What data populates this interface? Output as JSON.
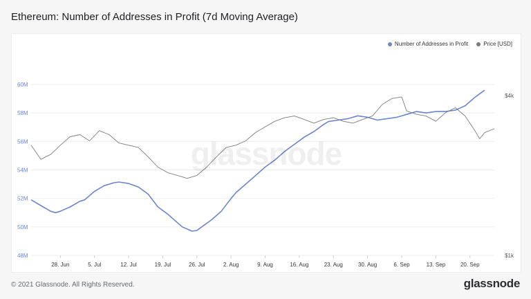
{
  "title": "Ethereum: Number of Addresses in Profit (7d Moving Average)",
  "footer": {
    "copyright": "© 2021 Glassnode. All Rights Reserved.",
    "logo": "glassnode"
  },
  "watermark": "glassnode",
  "colors": {
    "addresses": "#6c85cf",
    "price": "#7c7c7c",
    "grid": "#eeeeee",
    "tick": "#6c85cf"
  },
  "chart_data": {
    "type": "line",
    "title": "Ethereum: Number of Addresses in Profit (7d Moving Average)",
    "legend_position": "top-right",
    "grid": true,
    "x_ticks": [
      "28. Jun",
      "5. Jul",
      "12. Jul",
      "19. Jul",
      "26. Jul",
      "2. Aug",
      "9. Aug",
      "16. Aug",
      "23. Aug",
      "30. Aug",
      "6. Sep",
      "13. Sep",
      "20. Sep"
    ],
    "x_range": [
      "2021-06-22",
      "2021-09-25"
    ],
    "left_axis": {
      "ticks": [
        "48M",
        "50M",
        "52M",
        "54M",
        "56M",
        "58M",
        "60M"
      ],
      "tick_values": [
        48,
        50,
        52,
        54,
        56,
        58,
        60
      ],
      "unit": "M",
      "ylim": [
        48,
        61.8
      ]
    },
    "right_axis": {
      "ticks": [
        "$1k",
        "$4k"
      ],
      "tick_values": [
        1000,
        4000
      ],
      "scale": "log",
      "ylim": [
        1000,
        5500
      ]
    },
    "series": [
      {
        "name": "Number of Addresses in Profit",
        "axis": "left",
        "points": [
          [
            "2021-06-22",
            51.9
          ],
          [
            "2021-06-24",
            51.5
          ],
          [
            "2021-06-26",
            51.1
          ],
          [
            "2021-06-27",
            51.0
          ],
          [
            "2021-06-28",
            51.1
          ],
          [
            "2021-06-30",
            51.4
          ],
          [
            "2021-07-02",
            51.8
          ],
          [
            "2021-07-03",
            51.9
          ],
          [
            "2021-07-05",
            52.5
          ],
          [
            "2021-07-07",
            52.9
          ],
          [
            "2021-07-09",
            53.1
          ],
          [
            "2021-07-10",
            53.15
          ],
          [
            "2021-07-12",
            53.05
          ],
          [
            "2021-07-14",
            52.8
          ],
          [
            "2021-07-16",
            52.3
          ],
          [
            "2021-07-18",
            51.4
          ],
          [
            "2021-07-20",
            50.9
          ],
          [
            "2021-07-22",
            50.3
          ],
          [
            "2021-07-23",
            50.0
          ],
          [
            "2021-07-25",
            49.7
          ],
          [
            "2021-07-26",
            49.75
          ],
          [
            "2021-07-27",
            50.0
          ],
          [
            "2021-07-29",
            50.5
          ],
          [
            "2021-07-31",
            51.1
          ],
          [
            "2021-08-02",
            52.0
          ],
          [
            "2021-08-03",
            52.4
          ],
          [
            "2021-08-05",
            53.0
          ],
          [
            "2021-08-07",
            53.6
          ],
          [
            "2021-08-09",
            54.2
          ],
          [
            "2021-08-11",
            54.7
          ],
          [
            "2021-08-13",
            55.3
          ],
          [
            "2021-08-15",
            55.8
          ],
          [
            "2021-08-17",
            56.3
          ],
          [
            "2021-08-19",
            56.7
          ],
          [
            "2021-08-21",
            57.2
          ],
          [
            "2021-08-22",
            57.4
          ],
          [
            "2021-08-24",
            57.5
          ],
          [
            "2021-08-26",
            57.6
          ],
          [
            "2021-08-28",
            57.8
          ],
          [
            "2021-08-30",
            57.7
          ],
          [
            "2021-09-01",
            57.5
          ],
          [
            "2021-09-03",
            57.6
          ],
          [
            "2021-09-05",
            57.7
          ],
          [
            "2021-09-07",
            57.9
          ],
          [
            "2021-09-09",
            58.1
          ],
          [
            "2021-09-11",
            58.0
          ],
          [
            "2021-09-13",
            58.1
          ],
          [
            "2021-09-15",
            58.1
          ],
          [
            "2021-09-17",
            58.2
          ],
          [
            "2021-09-19",
            58.5
          ],
          [
            "2021-09-21",
            59.1
          ],
          [
            "2021-09-23",
            59.6
          ]
        ]
      },
      {
        "name": "Price [USD]",
        "axis": "right",
        "points": [
          [
            "2021-06-22",
            2600
          ],
          [
            "2021-06-24",
            2300
          ],
          [
            "2021-06-26",
            2400
          ],
          [
            "2021-06-28",
            2600
          ],
          [
            "2021-06-30",
            2800
          ],
          [
            "2021-07-02",
            2850
          ],
          [
            "2021-07-04",
            2700
          ],
          [
            "2021-07-06",
            2950
          ],
          [
            "2021-07-08",
            2850
          ],
          [
            "2021-07-10",
            2650
          ],
          [
            "2021-07-12",
            2600
          ],
          [
            "2021-07-14",
            2550
          ],
          [
            "2021-07-16",
            2350
          ],
          [
            "2021-07-18",
            2150
          ],
          [
            "2021-07-20",
            2050
          ],
          [
            "2021-07-22",
            2000
          ],
          [
            "2021-07-24",
            1950
          ],
          [
            "2021-07-26",
            2000
          ],
          [
            "2021-07-28",
            2150
          ],
          [
            "2021-07-30",
            2350
          ],
          [
            "2021-08-01",
            2550
          ],
          [
            "2021-08-03",
            2600
          ],
          [
            "2021-08-05",
            2700
          ],
          [
            "2021-08-07",
            2900
          ],
          [
            "2021-08-09",
            3050
          ],
          [
            "2021-08-11",
            3200
          ],
          [
            "2021-08-13",
            3300
          ],
          [
            "2021-08-15",
            3350
          ],
          [
            "2021-08-17",
            3250
          ],
          [
            "2021-08-19",
            3150
          ],
          [
            "2021-08-21",
            3250
          ],
          [
            "2021-08-23",
            3300
          ],
          [
            "2021-08-25",
            3200
          ],
          [
            "2021-08-27",
            3150
          ],
          [
            "2021-08-29",
            3250
          ],
          [
            "2021-08-31",
            3350
          ],
          [
            "2021-09-02",
            3700
          ],
          [
            "2021-09-04",
            3900
          ],
          [
            "2021-09-06",
            3950
          ],
          [
            "2021-09-07",
            3500
          ],
          [
            "2021-09-09",
            3400
          ],
          [
            "2021-09-11",
            3350
          ],
          [
            "2021-09-13",
            3200
          ],
          [
            "2021-09-15",
            3450
          ],
          [
            "2021-09-17",
            3600
          ],
          [
            "2021-09-19",
            3350
          ],
          [
            "2021-09-21",
            2950
          ],
          [
            "2021-09-22",
            2750
          ],
          [
            "2021-09-23",
            2900
          ],
          [
            "2021-09-25",
            3000
          ]
        ]
      }
    ]
  }
}
